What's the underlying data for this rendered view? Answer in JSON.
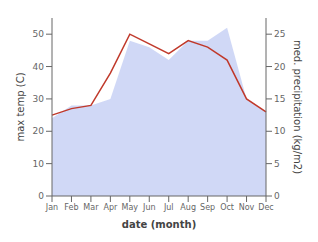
{
  "chart_data": {
    "type": "line",
    "xlabel": "date (month)",
    "ylabel": "max temp (C)",
    "y2label": "med. precipitation (kg/m2)",
    "categories": [
      "Jan",
      "Feb",
      "Mar",
      "Apr",
      "May",
      "Jun",
      "Jul",
      "Aug",
      "Sep",
      "Oct",
      "Nov",
      "Dec"
    ],
    "series": [
      {
        "type": "area",
        "axis": "y2",
        "color": "#b0bef0",
        "values": [
          12,
          14,
          14,
          15,
          24,
          23,
          21,
          24,
          24,
          26,
          15,
          13
        ]
      },
      {
        "type": "line",
        "color": "#c0392b",
        "values": [
          25,
          27,
          28,
          38,
          50,
          47,
          44,
          48,
          46,
          42,
          30,
          26
        ]
      }
    ],
    "ylim": [
      0,
      55
    ],
    "yticks": [
      0,
      10,
      20,
      30,
      40,
      50
    ],
    "y2lim": [
      0,
      27.5
    ],
    "y2ticks": [
      0,
      5,
      10,
      15,
      20,
      25
    ],
    "grid": false
  }
}
